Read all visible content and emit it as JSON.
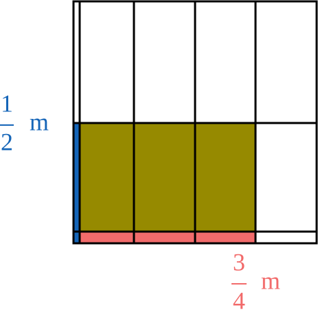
{
  "left_label": {
    "numerator": "1",
    "denominator": "2",
    "unit": "m"
  },
  "bottom_label": {
    "numerator": "3",
    "denominator": "4",
    "unit": "m"
  }
}
